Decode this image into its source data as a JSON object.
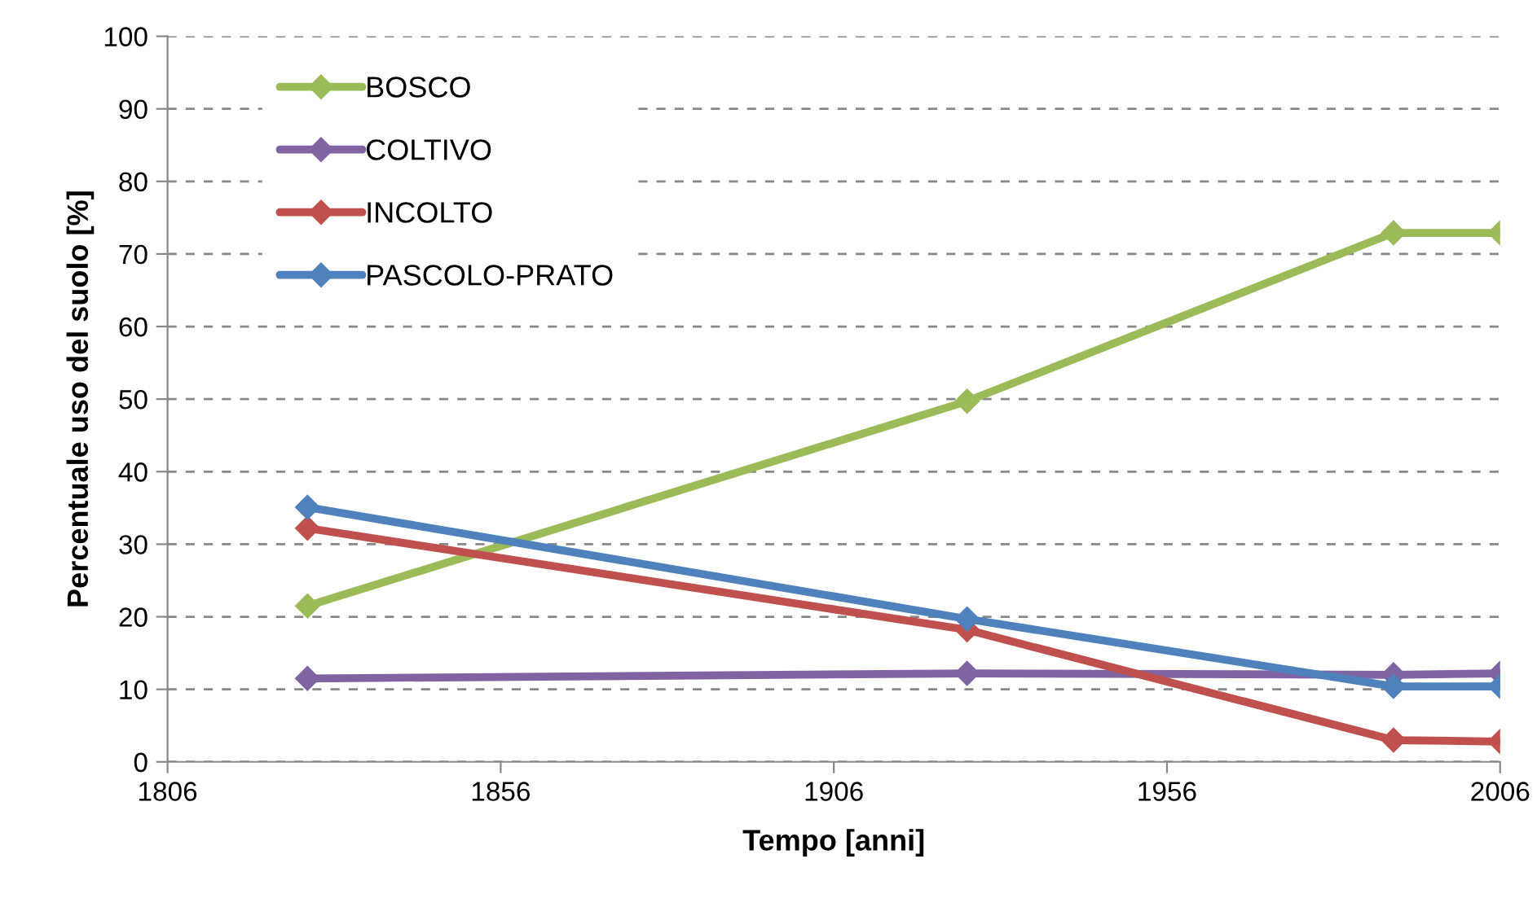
{
  "chart_data": {
    "type": "line",
    "xlabel": "Tempo [anni]",
    "ylabel": "Percentuale uso del suolo [%]",
    "x": [
      1827,
      1926,
      1990,
      2006
    ],
    "series": [
      {
        "name": "BOSCO",
        "color": "#9bbb59",
        "values": [
          21.5,
          49.7,
          72.9,
          72.9
        ]
      },
      {
        "name": "COLTIVO",
        "color": "#8064a2",
        "values": [
          11.5,
          12.2,
          12.0,
          12.2
        ]
      },
      {
        "name": "INCOLTO",
        "color": "#c0504d",
        "values": [
          32.2,
          18.2,
          3.0,
          2.8
        ]
      },
      {
        "name": "PASCOLO-PRATO",
        "color": "#4f81bd",
        "values": [
          35.1,
          19.7,
          10.4,
          10.4
        ]
      }
    ],
    "xlim": [
      1806,
      2006
    ],
    "xticks": [
      1806,
      1856,
      1906,
      1956,
      2006
    ],
    "ylim": [
      0,
      100
    ],
    "yticks": [
      0,
      10,
      20,
      30,
      40,
      50,
      60,
      70,
      80,
      90,
      100
    ],
    "grid": "y",
    "legend": "top left",
    "marker": "diamond",
    "line_style": "solid"
  }
}
